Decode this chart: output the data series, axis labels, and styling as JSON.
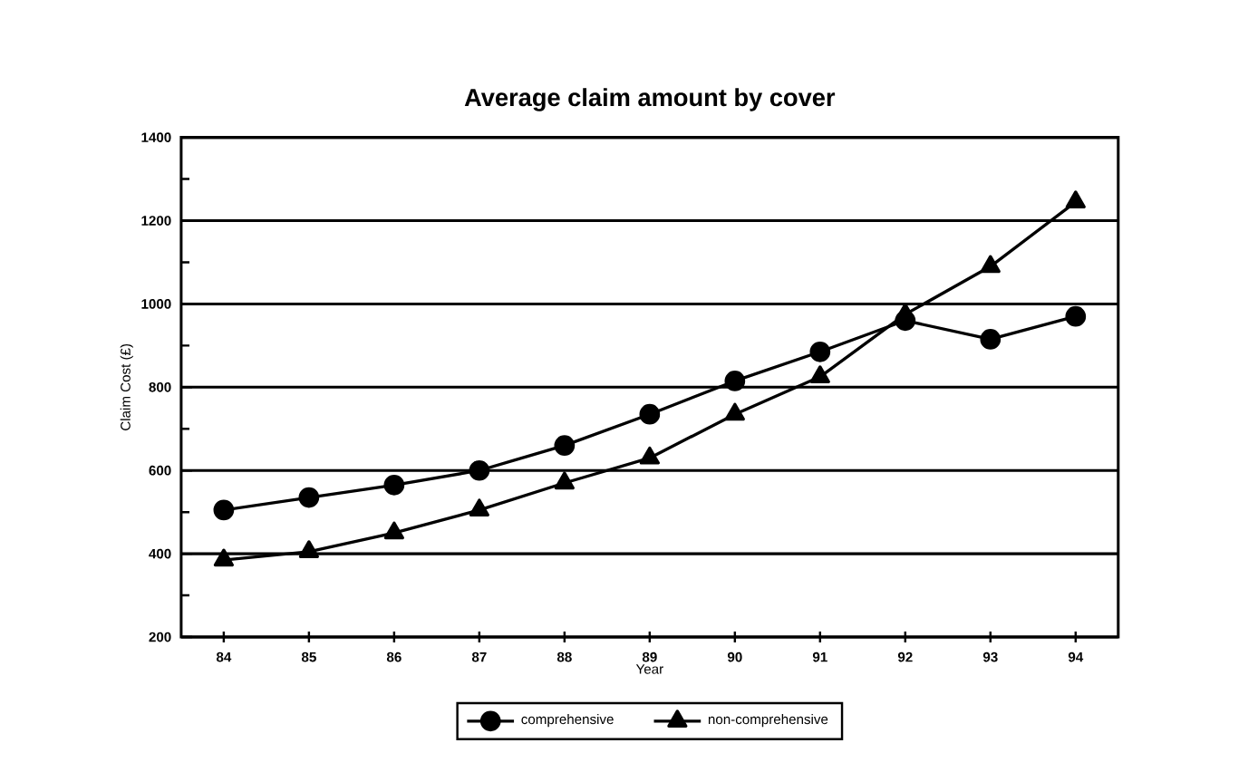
{
  "chart_data": {
    "type": "line",
    "title": "Average claim amount by cover",
    "xlabel": "Year",
    "ylabel": "Claim Cost (£)",
    "categories": [
      "84",
      "85",
      "86",
      "87",
      "88",
      "89",
      "90",
      "91",
      "92",
      "93",
      "94"
    ],
    "series": [
      {
        "name": "comprehensive",
        "color": "#000000",
        "marker": "circle",
        "values": [
          505,
          535,
          565,
          600,
          660,
          735,
          815,
          885,
          960,
          915,
          970
        ]
      },
      {
        "name": "non-comprehensive",
        "color": "#000000",
        "marker": "triangle",
        "values": [
          385,
          405,
          450,
          505,
          570,
          630,
          735,
          825,
          975,
          1090,
          1245
        ]
      }
    ],
    "ylim": [
      200,
      1400
    ],
    "yticks": [
      200,
      400,
      600,
      800,
      1000,
      1200,
      1400
    ],
    "grid": "y",
    "legend": "bottom"
  }
}
